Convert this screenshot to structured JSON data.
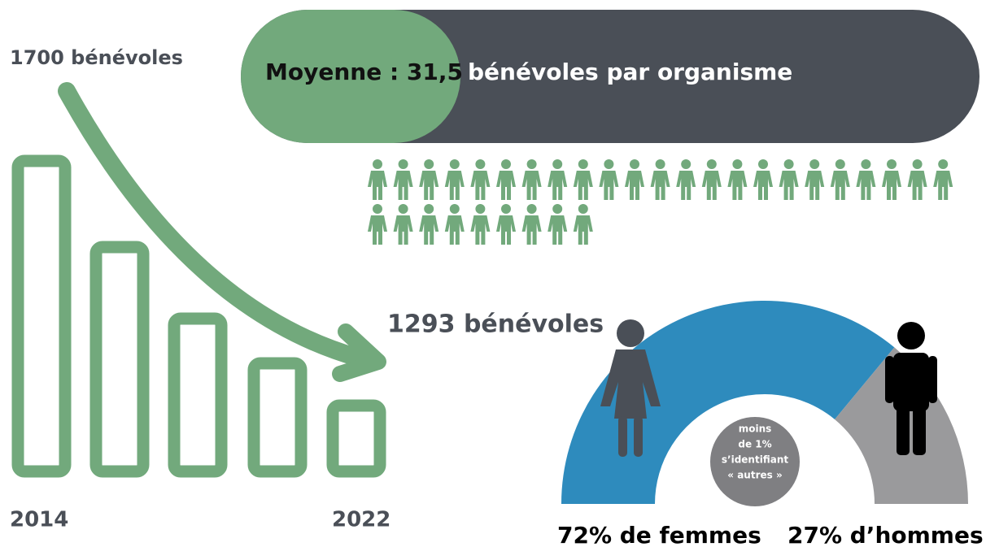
{
  "volunteers": {
    "start_label": "1700 bénévoles",
    "end_label": "1293 bénévoles",
    "start_year": "2014",
    "end_year": "2022"
  },
  "average": {
    "label": "Moyenne : 31,5",
    "text": "bénévoles par organisme"
  },
  "gender": {
    "women": 72,
    "men": 27,
    "women_label": "72% de femmes",
    "men_label": "27% d’hommes",
    "other_lines": [
      "moins",
      "de 1%",
      "s’identifiant",
      "« autres »"
    ]
  }
}
